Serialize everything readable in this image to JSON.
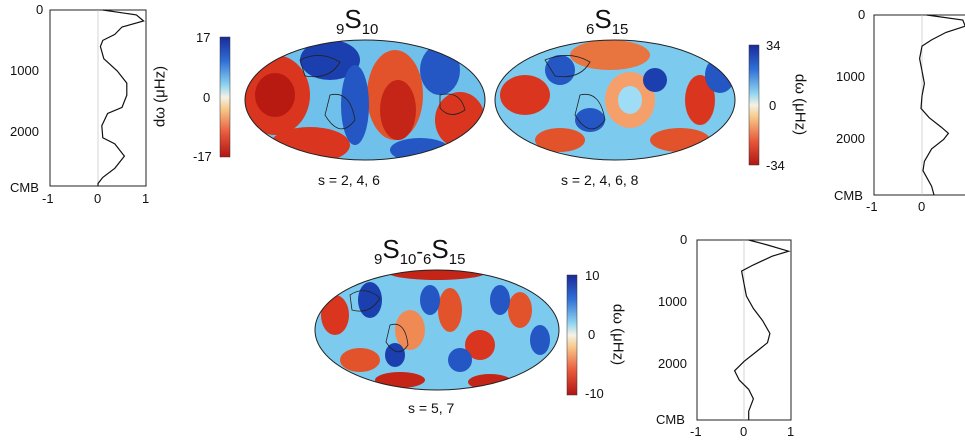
{
  "panels": [
    {
      "title_main": "S",
      "title_left_sub": "9",
      "title_right_sub": "10",
      "caption": "s = 2, 4, 6",
      "colorbar": {
        "max_label": "17",
        "mid_label": "0",
        "min_label": "-17",
        "label": "dω (μHz)"
      }
    },
    {
      "title_main": "S",
      "title_left_sub": "6",
      "title_right_sub": "15",
      "caption": "s = 2, 4, 6, 8",
      "colorbar": {
        "max_label": "34",
        "mid_label": "0",
        "min_label": "-34",
        "label": "dω (μHz)"
      }
    },
    {
      "title_part1": "S",
      "title_left_sub": "9",
      "title_mid_sub": "10",
      "title_sep": "-",
      "title_sub2": "6",
      "title_part2": "S",
      "title_right_sub": "15",
      "caption": "s = 5, 7",
      "colorbar": {
        "max_label": "10",
        "mid_label": "0",
        "min_label": "-10",
        "label": "dω (μHz)"
      }
    }
  ],
  "profiles": {
    "depth_ticks": [
      "0",
      "1000",
      "2000",
      "CMB"
    ],
    "x_ticks": [
      "-1",
      "0",
      "1"
    ]
  },
  "chart_data": [
    {
      "type": "line",
      "title": "",
      "xlabel": "",
      "ylabel": "",
      "xlim": [
        -1,
        1
      ],
      "ylim": [
        2891,
        0
      ],
      "y_ticks": [
        "0",
        "1000",
        "2000",
        "CMB"
      ],
      "x_ticks": [
        "-1",
        "0",
        "1"
      ],
      "series": [
        {
          "x": [
            0.1,
            0.8,
            0.95,
            0.5,
            0.35,
            0.1,
            0.05,
            0.12,
            0.4,
            0.6,
            0.6,
            0.5,
            0.2,
            0.08,
            0.1,
            0.35,
            0.55,
            0.35,
            0.1,
            0.0,
            0.0
          ],
          "y": [
            0,
            80,
            180,
            280,
            400,
            500,
            600,
            800,
            1000,
            1200,
            1400,
            1600,
            1700,
            1900,
            2100,
            2200,
            2400,
            2600,
            2750,
            2850,
            2891
          ]
        }
      ]
    },
    {
      "type": "line",
      "title": "",
      "xlabel": "",
      "ylabel": "",
      "xlim": [
        -1,
        1
      ],
      "ylim": [
        2891,
        0
      ],
      "y_ticks": [
        "0",
        "1000",
        "2000",
        "CMB"
      ],
      "x_ticks": [
        "-1",
        "0",
        "1"
      ],
      "series": [
        {
          "x": [
            0.1,
            0.85,
            0.9,
            0.5,
            0.2,
            0.0,
            -0.05,
            0.0,
            0.05,
            0.0,
            -0.02,
            0.15,
            0.4,
            0.55,
            0.45,
            0.2,
            0.05,
            0.02,
            0.2,
            0.25
          ],
          "y": [
            0,
            80,
            180,
            280,
            400,
            500,
            700,
            900,
            1100,
            1300,
            1500,
            1650,
            1800,
            1900,
            2000,
            2150,
            2350,
            2500,
            2750,
            2891
          ]
        }
      ]
    },
    {
      "type": "line",
      "title": "",
      "xlabel": "",
      "ylabel": "",
      "xlim": [
        -1,
        1
      ],
      "ylim": [
        2891,
        0
      ],
      "y_ticks": [
        "0",
        "1000",
        "2000",
        "CMB"
      ],
      "x_ticks": [
        "-1",
        "0",
        "1"
      ],
      "series": [
        {
          "x": [
            0.1,
            0.5,
            0.95,
            0.6,
            0.2,
            -0.05,
            0.0,
            0.05,
            0.2,
            0.4,
            0.55,
            0.5,
            0.25,
            0.0,
            -0.2,
            -0.1,
            0.1,
            0.2,
            0.1,
            0.1
          ],
          "y": [
            0,
            80,
            180,
            260,
            400,
            500,
            700,
            900,
            1100,
            1300,
            1500,
            1650,
            1800,
            1950,
            2100,
            2250,
            2400,
            2550,
            2750,
            2891
          ]
        }
      ]
    }
  ]
}
